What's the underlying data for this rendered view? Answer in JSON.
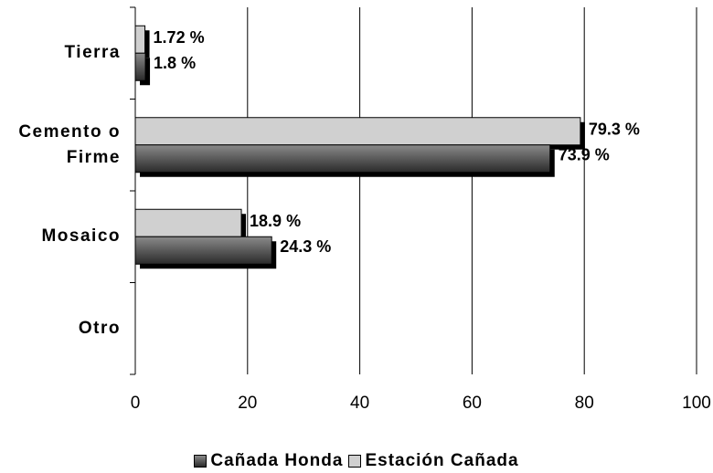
{
  "chart_data": {
    "type": "bar",
    "orientation": "horizontal",
    "categories": [
      "Tierra",
      "Cemento o Firme",
      "Mosaico",
      "Otro"
    ],
    "series": [
      {
        "name": "Cañada Honda",
        "color": "#555555",
        "values": [
          1.8,
          73.9,
          24.3,
          null
        ],
        "value_labels": [
          "1.8 %",
          "73.9 %",
          "24.3 %",
          null
        ]
      },
      {
        "name": "Estación Cañada",
        "color": "#d0d0d0",
        "values": [
          1.72,
          79.3,
          18.9,
          null
        ],
        "value_labels": [
          "1.72 %",
          "79.3 %",
          "18.9 %",
          null
        ]
      }
    ],
    "xlim": [
      0,
      100
    ],
    "xticks": [
      0,
      20,
      40,
      60,
      80,
      100
    ],
    "grid": true,
    "legend": "bottom"
  }
}
